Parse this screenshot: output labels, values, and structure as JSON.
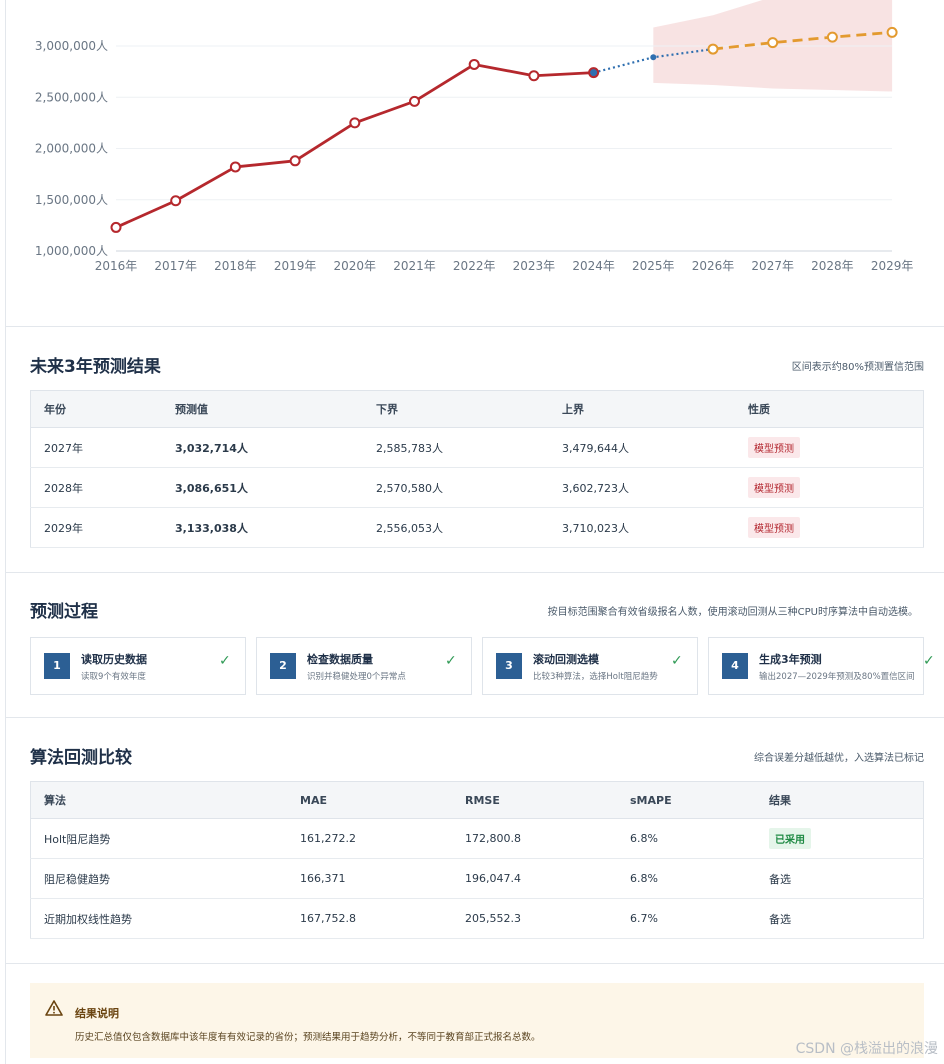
{
  "chart_data": {
    "type": "line",
    "title": "",
    "x": [
      "2016年",
      "2017年",
      "2018年",
      "2019年",
      "2020年",
      "2021年",
      "2022年",
      "2023年",
      "2024年",
      "2025年",
      "2026年",
      "2027年",
      "2028年",
      "2029年"
    ],
    "ytick_labels": [
      "1,000,000人",
      "1,500,000人",
      "2,000,000人",
      "2,500,000人",
      "3,000,000人"
    ],
    "yticks": [
      1000000,
      1500000,
      2000000,
      2500000,
      3000000
    ],
    "ylim": [
      1000000,
      3200000
    ],
    "series": [
      {
        "style": "solid",
        "color": "#b5282d",
        "x": [
          "2016年",
          "2017年",
          "2018年",
          "2019年",
          "2020年",
          "2021年",
          "2022年",
          "2023年",
          "2024年"
        ],
        "values": [
          1230000,
          1490000,
          1820000,
          1880000,
          2250000,
          2460000,
          2820000,
          2710000,
          2740000
        ]
      },
      {
        "style": "dotted",
        "color": "#2f6fb0",
        "x": [
          "2024年",
          "2025年",
          "2026年"
        ],
        "values": [
          2740000,
          2890000,
          2970000
        ]
      },
      {
        "style": "dashed",
        "color": "#e39a2f",
        "x": [
          "2026年",
          "2027年",
          "2028年",
          "2029年"
        ],
        "values": [
          2970000,
          3032714,
          3086651,
          3133038
        ]
      }
    ],
    "band": {
      "color": "#f6dada",
      "x": [
        "2025年",
        "2026年",
        "2027年",
        "2028年",
        "2029年"
      ],
      "lower": [
        2640000,
        2620000,
        2585783,
        2570580,
        2556053
      ],
      "upper": [
        3180000,
        3300000,
        3479644,
        3602723,
        3710023
      ]
    },
    "grid": true,
    "legend": "none"
  },
  "forecast": {
    "title": "未来3年预测结果",
    "note": "区间表示约80%预测置信范围",
    "headers": [
      "年份",
      "预测值",
      "下界",
      "上界",
      "性质"
    ],
    "rows": [
      {
        "year": "2027年",
        "value": "3,032,714人",
        "lower": "2,585,783人",
        "upper": "3,479,644人",
        "type": "模型预测"
      },
      {
        "year": "2028年",
        "value": "3,086,651人",
        "lower": "2,570,580人",
        "upper": "3,602,723人",
        "type": "模型预测"
      },
      {
        "year": "2029年",
        "value": "3,133,038人",
        "lower": "2,556,053人",
        "upper": "3,710,023人",
        "type": "模型预测"
      }
    ]
  },
  "process": {
    "title": "预测过程",
    "note": "按目标范围聚合有效省级报名人数，使用滚动回测从三种CPU时序算法中自动选模。",
    "steps": [
      {
        "num": "1",
        "title": "读取历史数据",
        "desc": "读取9个有效年度"
      },
      {
        "num": "2",
        "title": "检查数据质量",
        "desc": "识别并稳健处理0个异常点"
      },
      {
        "num": "3",
        "title": "滚动回测选模",
        "desc": "比较3种算法，选择Holt阻尼趋势"
      },
      {
        "num": "4",
        "title": "生成3年预测",
        "desc": "输出2027—2029年预测及80%置信区间"
      }
    ]
  },
  "algorithms": {
    "title": "算法回测比较",
    "note": "综合误差分越低越优，入选算法已标记",
    "headers": [
      "算法",
      "MAE",
      "RMSE",
      "sMAPE",
      "结果"
    ],
    "rows": [
      {
        "name": "Holt阻尼趋势",
        "mae": "161,272.2",
        "rmse": "172,800.8",
        "smape": "6.8%",
        "result": "已采用",
        "adopted": true
      },
      {
        "name": "阻尼稳健趋势",
        "mae": "166,371",
        "rmse": "196,047.4",
        "smape": "6.8%",
        "result": "备选",
        "adopted": false
      },
      {
        "name": "近期加权线性趋势",
        "mae": "167,752.8",
        "rmse": "205,552.3",
        "smape": "6.7%",
        "result": "备选",
        "adopted": false
      }
    ]
  },
  "notice": {
    "icon": "warning-triangle-icon",
    "title": "结果说明",
    "text": "历史汇总值仅包含数据库中该年度有有效记录的省份；预测结果用于趋势分析，不等同于教育部正式报名总数。"
  },
  "watermark": "CSDN @栈溢出的浪漫"
}
